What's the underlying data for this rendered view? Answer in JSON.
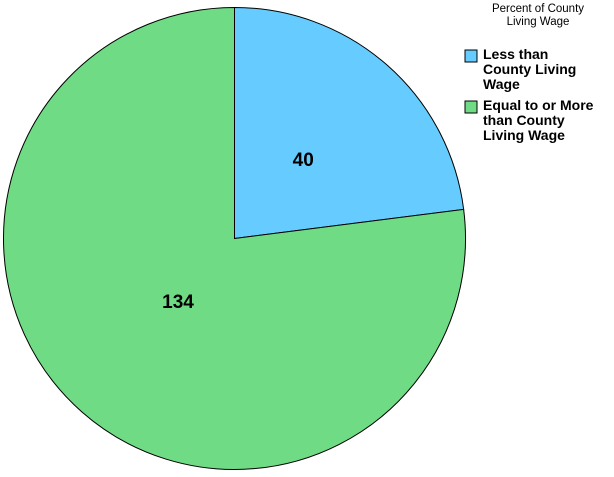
{
  "chart_data": {
    "type": "pie",
    "legend": {
      "title_lines": [
        "Percent of County",
        "Living Wage"
      ],
      "placement": "top-right"
    },
    "slices": [
      {
        "label_lines": [
          "Less than",
          "County Living",
          "Wage"
        ],
        "value": 40,
        "color": "#66ccff"
      },
      {
        "label_lines": [
          "Equal to or More",
          "than County",
          "Living Wage"
        ],
        "value": 134,
        "color": "#70db85"
      }
    ],
    "start_angle_deg": 0,
    "direction": "clockwise"
  }
}
